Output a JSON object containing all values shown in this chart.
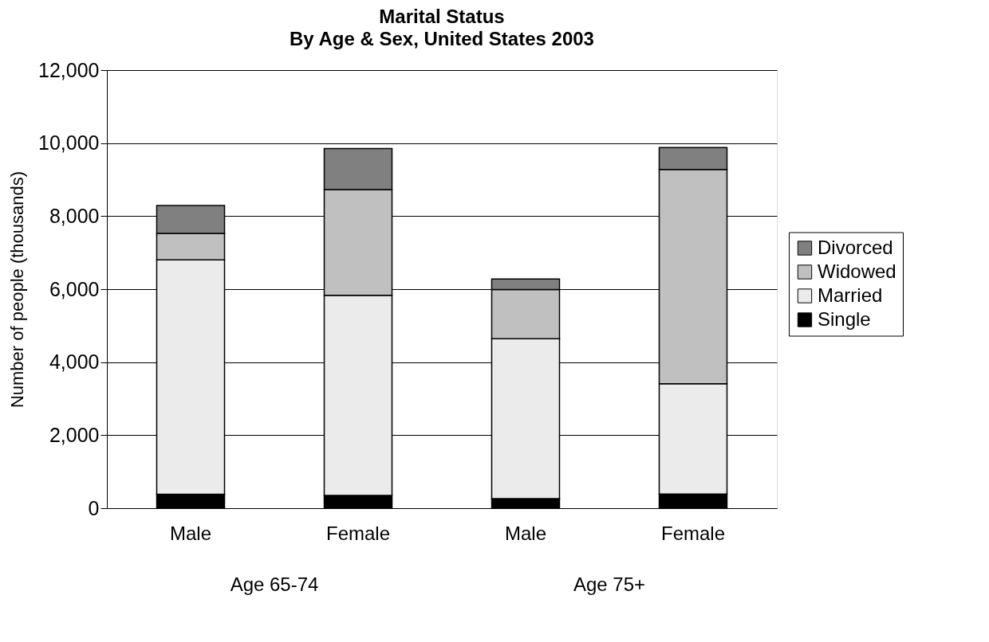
{
  "chart_data": {
    "type": "bar",
    "title": "Marital Status",
    "subtitle": "By Age & Sex, United States 2003",
    "ylabel": "Number of people (thousands)",
    "categories": [
      "Male",
      "Female",
      "Male",
      "Female"
    ],
    "stacked": true,
    "series": [
      {
        "name": "Single",
        "color": "#000000",
        "values": [
          380,
          350,
          260,
          390
        ]
      },
      {
        "name": "Married",
        "color": "#ebebeb",
        "values": [
          6420,
          5480,
          4380,
          3020
        ]
      },
      {
        "name": "Widowed",
        "color": "#c0c0c0",
        "values": [
          730,
          2900,
          1350,
          5870
        ]
      },
      {
        "name": "Divorced",
        "color": "#808080",
        "values": [
          760,
          1120,
          290,
          600
        ]
      }
    ],
    "ylim": [
      0,
      12000
    ],
    "yticks": [
      0,
      {
        "value": 2000,
        "label": "2,000"
      },
      {
        "value": 4000,
        "label": "4,000"
      },
      {
        "value": 6000,
        "label": "6,000"
      },
      {
        "value": 8000,
        "label": "8,000"
      },
      {
        "value": 10000,
        "label": "10,000"
      },
      {
        "value": 12000,
        "label": "12,000"
      }
    ],
    "grid": "y",
    "legend": "right",
    "annotations": [
      "Age 65-74",
      "Age 75+"
    ]
  }
}
